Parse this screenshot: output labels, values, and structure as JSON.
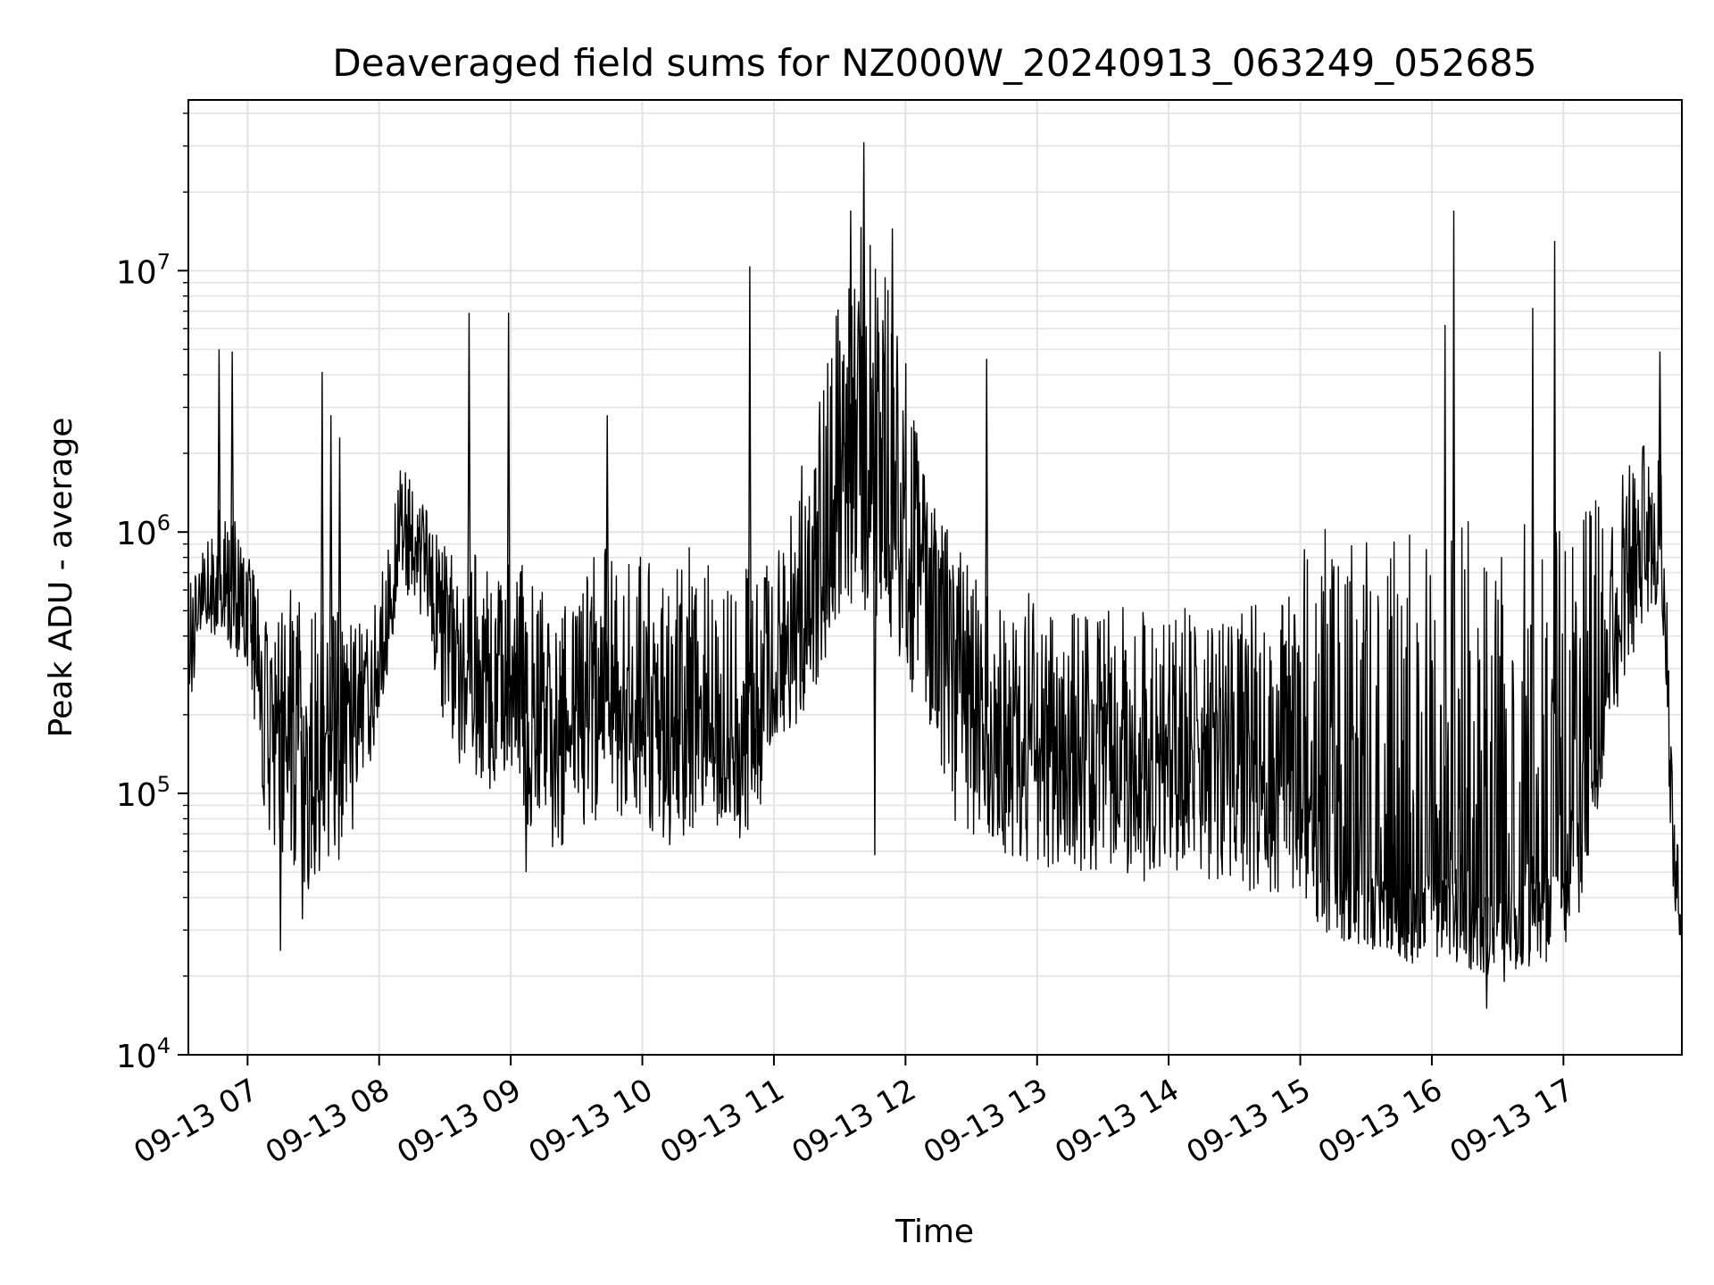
{
  "chart_data": {
    "type": "line",
    "title": "Deaveraged field sums for NZ000W_20240913_063249_052685",
    "xlabel": "Time",
    "ylabel": "Peak ADU - average",
    "yscale": "log",
    "ylim": [
      10000,
      45000000
    ],
    "xlim": [
      "2024-09-13 06:33",
      "2024-09-13 17:54"
    ],
    "grid": true,
    "line_color": "#000000",
    "x_ticks": [
      {
        "t": "2024-09-13 07:00",
        "label": "09-13 07"
      },
      {
        "t": "2024-09-13 08:00",
        "label": "09-13 08"
      },
      {
        "t": "2024-09-13 09:00",
        "label": "09-13 09"
      },
      {
        "t": "2024-09-13 10:00",
        "label": "09-13 10"
      },
      {
        "t": "2024-09-13 11:00",
        "label": "09-13 11"
      },
      {
        "t": "2024-09-13 12:00",
        "label": "09-13 12"
      },
      {
        "t": "2024-09-13 13:00",
        "label": "09-13 13"
      },
      {
        "t": "2024-09-13 14:00",
        "label": "09-13 14"
      },
      {
        "t": "2024-09-13 15:00",
        "label": "09-13 15"
      },
      {
        "t": "2024-09-13 16:00",
        "label": "09-13 16"
      },
      {
        "t": "2024-09-13 17:00",
        "label": "09-13 17"
      }
    ],
    "y_ticks": [
      {
        "value": 10000,
        "base": "10",
        "exp": "4"
      },
      {
        "value": 100000,
        "base": "10",
        "exp": "5"
      },
      {
        "value": 1000000,
        "base": "10",
        "exp": "6"
      },
      {
        "value": 10000000,
        "base": "10",
        "exp": "7"
      }
    ],
    "series": [
      {
        "x": [
          "2024-09-13 06:33",
          "2024-09-13 06:40",
          "2024-09-13 06:50",
          "2024-09-13 07:00",
          "2024-09-13 07:10",
          "2024-09-13 07:20",
          "2024-09-13 07:30",
          "2024-09-13 07:40",
          "2024-09-13 07:50",
          "2024-09-13 08:00",
          "2024-09-13 08:10",
          "2024-09-13 08:20",
          "2024-09-13 08:30",
          "2024-09-13 08:40",
          "2024-09-13 08:50",
          "2024-09-13 09:00",
          "2024-09-13 09:10",
          "2024-09-13 09:20",
          "2024-09-13 09:30",
          "2024-09-13 09:40",
          "2024-09-13 09:50",
          "2024-09-13 10:00",
          "2024-09-13 10:10",
          "2024-09-13 10:20",
          "2024-09-13 10:30",
          "2024-09-13 10:40",
          "2024-09-13 10:50",
          "2024-09-13 11:00",
          "2024-09-13 11:10",
          "2024-09-13 11:20",
          "2024-09-13 11:30",
          "2024-09-13 11:40",
          "2024-09-13 11:50",
          "2024-09-13 12:00",
          "2024-09-13 12:10",
          "2024-09-13 12:20",
          "2024-09-13 12:30",
          "2024-09-13 12:40",
          "2024-09-13 12:50",
          "2024-09-13 13:00",
          "2024-09-13 13:10",
          "2024-09-13 13:20",
          "2024-09-13 13:30",
          "2024-09-13 13:40",
          "2024-09-13 13:50",
          "2024-09-13 14:00",
          "2024-09-13 14:10",
          "2024-09-13 14:20",
          "2024-09-13 14:30",
          "2024-09-13 14:40",
          "2024-09-13 14:50",
          "2024-09-13 15:00",
          "2024-09-13 15:10",
          "2024-09-13 15:20",
          "2024-09-13 15:30",
          "2024-09-13 15:40",
          "2024-09-13 15:50",
          "2024-09-13 16:00",
          "2024-09-13 16:10",
          "2024-09-13 16:20",
          "2024-09-13 16:30",
          "2024-09-13 16:40",
          "2024-09-13 16:50",
          "2024-09-13 17:00",
          "2024-09-13 17:10",
          "2024-09-13 17:20",
          "2024-09-13 17:30",
          "2024-09-13 17:40",
          "2024-09-13 17:45",
          "2024-09-13 17:50",
          "2024-09-13 17:54"
        ],
        "y": [
          300000,
          650000,
          550000,
          700000,
          250000,
          200000,
          150000,
          180000,
          200000,
          300000,
          1000000,
          800000,
          400000,
          350000,
          300000,
          250000,
          250000,
          200000,
          200000,
          250000,
          250000,
          280000,
          200000,
          250000,
          250000,
          200000,
          200000,
          300000,
          400000,
          600000,
          1200000,
          2000000,
          1500000,
          1000000,
          900000,
          500000,
          250000,
          200000,
          180000,
          170000,
          150000,
          140000,
          150000,
          130000,
          120000,
          160000,
          150000,
          140000,
          130000,
          120000,
          120000,
          110000,
          90000,
          60000,
          50000,
          45000,
          45000,
          50000,
          45000,
          40000,
          40000,
          45000,
          45000,
          50000,
          100000,
          300000,
          600000,
          800000,
          1000000,
          80000,
          30000
        ],
        "lo": [
          200000,
          450000,
          350000,
          300000,
          60000,
          45000,
          40000,
          50000,
          80000,
          180000,
          600000,
          450000,
          150000,
          120000,
          100000,
          100000,
          70000,
          60000,
          70000,
          80000,
          80000,
          80000,
          60000,
          70000,
          80000,
          70000,
          60000,
          150000,
          180000,
          250000,
          400000,
          500000,
          400000,
          300000,
          150000,
          80000,
          60000,
          60000,
          55000,
          55000,
          50000,
          50000,
          50000,
          50000,
          45000,
          50000,
          50000,
          45000,
          45000,
          40000,
          40000,
          40000,
          30000,
          27000,
          25000,
          25000,
          22000,
          24000,
          22000,
          20000,
          20000,
          21000,
          22000,
          25000,
          40000,
          150000,
          300000,
          500000,
          500000,
          40000,
          25000
        ],
        "hi": [
          600000,
          900000,
          1400000,
          800000,
          650000,
          600000,
          500000,
          500000,
          450000,
          700000,
          1900000,
          1300000,
          900000,
          900000,
          700000,
          800000,
          700000,
          500000,
          600000,
          900000,
          800000,
          900000,
          700000,
          900000,
          800000,
          800000,
          900000,
          1100000,
          1500000,
          3000000,
          10000000,
          15000000,
          10000000,
          5000000,
          1500000,
          1000000,
          700000,
          650000,
          600000,
          600000,
          500000,
          500000,
          500000,
          550000,
          500000,
          600000,
          500000,
          450000,
          500000,
          600000,
          500000,
          1000000,
          1200000,
          1000000,
          1000000,
          1100000,
          1200000,
          1100000,
          1100000,
          1100000,
          1200000,
          1100000,
          1100000,
          1000000,
          1200000,
          1500000,
          1800000,
          2500000,
          2000000,
          120000,
          40000
        ],
        "spikes": [
          {
            "t": "2024-09-13 06:47",
            "y": 5000000
          },
          {
            "t": "2024-09-13 06:53",
            "y": 4900000
          },
          {
            "t": "2024-09-13 07:34",
            "y": 4100000
          },
          {
            "t": "2024-09-13 07:38",
            "y": 2800000
          },
          {
            "t": "2024-09-13 07:42",
            "y": 2300000
          },
          {
            "t": "2024-09-13 08:41",
            "y": 6900000
          },
          {
            "t": "2024-09-13 08:59",
            "y": 6900000
          },
          {
            "t": "2024-09-13 09:44",
            "y": 2800000
          },
          {
            "t": "2024-09-13 10:49",
            "y": 10400000
          },
          {
            "t": "2024-09-13 11:41",
            "y": 31000000
          },
          {
            "t": "2024-09-13 11:35",
            "y": 17000000
          },
          {
            "t": "2024-09-13 11:54",
            "y": 14500000
          },
          {
            "t": "2024-09-13 12:37",
            "y": 4600000
          },
          {
            "t": "2024-09-13 16:06",
            "y": 6200000
          },
          {
            "t": "2024-09-13 16:10",
            "y": 17000000
          },
          {
            "t": "2024-09-13 16:46",
            "y": 7200000
          },
          {
            "t": "2024-09-13 16:56",
            "y": 13000000
          },
          {
            "t": "2024-09-13 17:44",
            "y": 4900000
          }
        ],
        "dips": [
          {
            "t": "2024-09-13 07:15",
            "y": 25000
          },
          {
            "t": "2024-09-13 07:25",
            "y": 33000
          },
          {
            "t": "2024-09-13 09:07",
            "y": 50000
          },
          {
            "t": "2024-09-13 11:46",
            "y": 58000
          },
          {
            "t": "2024-09-13 16:25",
            "y": 15000
          },
          {
            "t": "2024-09-13 16:33",
            "y": 19000
          }
        ]
      }
    ]
  }
}
